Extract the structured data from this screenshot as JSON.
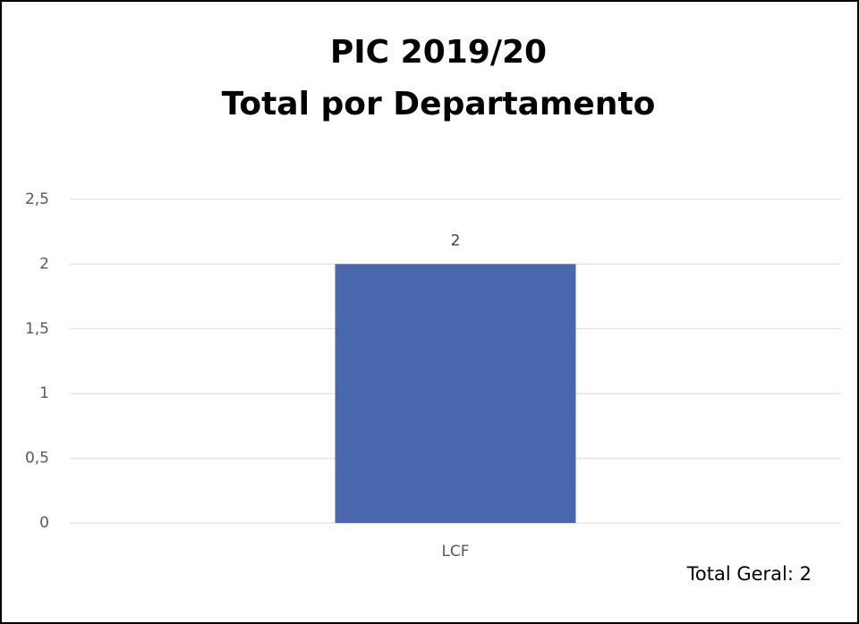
{
  "chart_data": {
    "type": "bar",
    "title": "PIC 2019/20",
    "subtitle": "Total por Departamento",
    "categories": [
      "LCF"
    ],
    "values": [
      2
    ],
    "color": "#4a66ac",
    "ylim": [
      0,
      2.5
    ],
    "yticks": [
      0,
      {
        "value": 0.5,
        "label": "0,5"
      },
      1,
      {
        "value": 1.5,
        "label": "1,5"
      },
      2,
      {
        "value": 2.5,
        "label": "2,5"
      }
    ],
    "grid": true,
    "annotation": "Total Geral: 2"
  }
}
